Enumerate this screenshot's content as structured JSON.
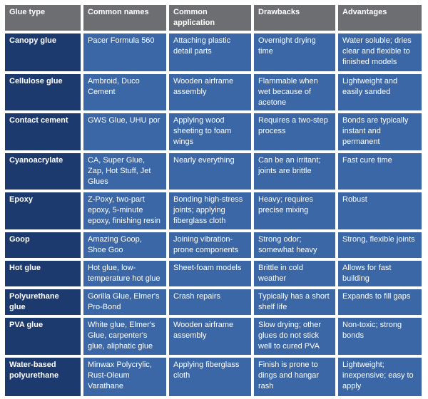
{
  "colors": {
    "header": "#6d6e71",
    "first_column": "#1d3a6f",
    "cells": "#3b67a7",
    "text": "#ffffff"
  },
  "headers": [
    "Glue type",
    "Common names",
    "Common application",
    "Drawbacks",
    "Advantages"
  ],
  "rows": [
    [
      "Canopy glue",
      "Pacer Formula 560",
      "Attaching plastic detail parts",
      "Overnight drying time",
      "Water soluble; dries clear and flexible to finished models"
    ],
    [
      "Cellulose glue",
      "Ambroid, Duco Cement",
      "Wooden airframe assembly",
      "Flammable when wet because of acetone",
      "Lightweight and easily sanded"
    ],
    [
      "Contact cement",
      "GWS Glue, UHU por",
      "Applying wood sheeting to foam wings",
      "Requires a two-step process",
      "Bonds are typically instant and permanent"
    ],
    [
      "Cyanoacrylate",
      "CA, Super Glue, Zap, Hot Stuff, Jet Glues",
      "Nearly everything",
      "Can be an irritant; joints are brittle",
      "Fast cure time"
    ],
    [
      "Epoxy",
      "Z-Poxy, two-part epoxy, 5-minute epoxy, finishing resin",
      "Bonding high-stress joints; applying fiberglass cloth",
      "Heavy; requires precise mixing",
      "Robust"
    ],
    [
      "Goop",
      "Amazing Goop, Shoe Goo",
      "Joining vibration-prone components",
      "Strong odor; somewhat heavy",
      "Strong, flexible joints"
    ],
    [
      "Hot glue",
      "Hot glue, low-temperature hot glue",
      "Sheet-foam models",
      "Brittle in cold weather",
      "Allows for fast building"
    ],
    [
      "Polyurethane glue",
      "Gorilla Glue, Elmer's Pro-Bond",
      "Crash repairs",
      "Typically has a short shelf life",
      "Expands to fill gaps"
    ],
    [
      "PVA glue",
      "White glue, Elmer's Glue, carpenter's glue, aliphatic glue",
      "Wooden airframe assembly",
      "Slow drying; other glues do not stick well to cured PVA",
      "Non-toxic; strong bonds"
    ],
    [
      "Water-based polyurethane",
      "Minwax Polycrylic, Rust-Oleum Varathane",
      "Applying fiberglass cloth",
      "Finish is prone to dings and hangar rash",
      "Lightweight; inexpensive; easy to apply"
    ]
  ]
}
